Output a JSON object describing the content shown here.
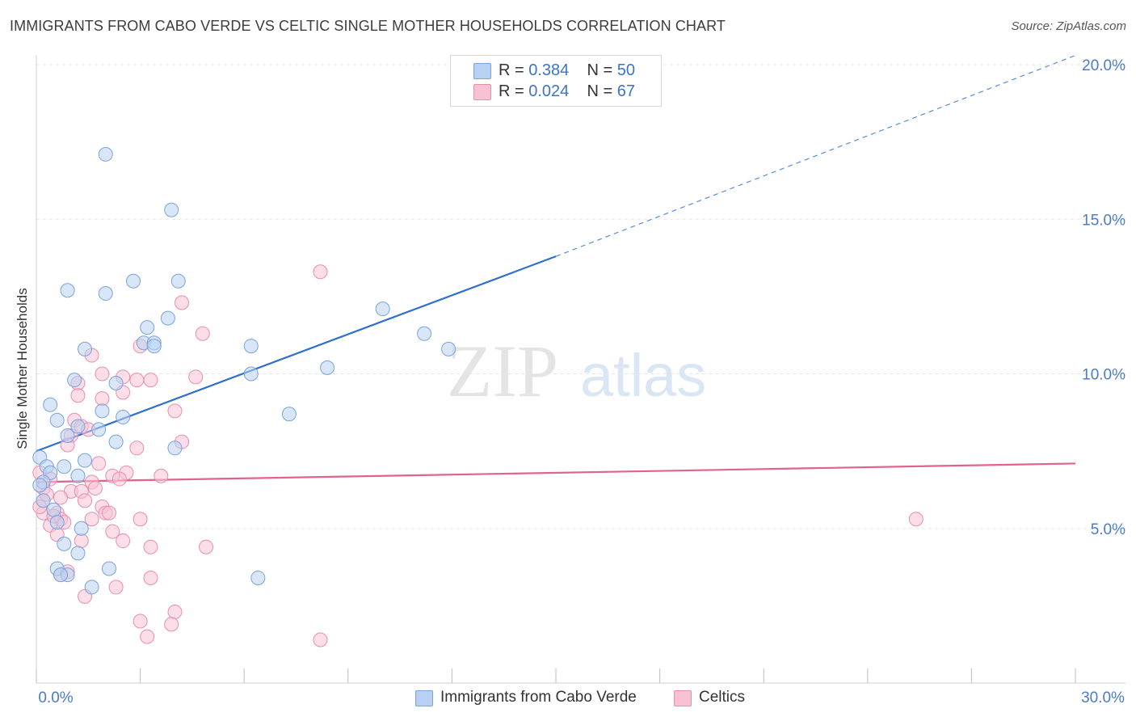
{
  "title": "IMMIGRANTS FROM CABO VERDE VS CELTIC SINGLE MOTHER HOUSEHOLDS CORRELATION CHART",
  "source": "Source: ZipAtlas.com",
  "watermark": {
    "zip": "ZIP",
    "atlas": "atlas"
  },
  "legend": {
    "series": [
      {
        "r_label": "R =",
        "r_value": "0.384",
        "n_label": "N =",
        "n_value": "50"
      },
      {
        "r_label": "R =",
        "r_value": "0.024",
        "n_label": "N =",
        "n_value": "67"
      }
    ]
  },
  "colors": {
    "blue_fill": "#b8d1f3",
    "blue_stroke": "#7aa3db",
    "blue_line": "#2e6fd0",
    "pink_fill": "#f7c3d4",
    "pink_stroke": "#e98db0",
    "pink_line": "#e0628f",
    "tick_label": "#4a7cc9",
    "grid": "#e6e6e6"
  },
  "chart_data": {
    "type": "scatter",
    "title": "IMMIGRANTS FROM CABO VERDE VS CELTIC SINGLE MOTHER HOUSEHOLDS CORRELATION CHART",
    "xlabel": "",
    "ylabel": "Single Mother Households",
    "xlim": [
      0,
      30
    ],
    "ylim": [
      0,
      20
    ],
    "x_tick_labels": [
      "0.0%",
      "30.0%"
    ],
    "y_ticks": [
      5,
      10,
      15,
      20
    ],
    "y_tick_labels": [
      "5.0%",
      "10.0%",
      "15.0%",
      "20.0%"
    ],
    "grid": true,
    "legend_position": "top-center",
    "series": [
      {
        "name": "Immigrants from Cabo Verde",
        "r": 0.384,
        "n": 50,
        "trend": {
          "x0": 0,
          "y0": 7.5,
          "x1": 15,
          "y1": 13.8,
          "dashed_to_x": 30,
          "dashed_to_y": 20.3
        },
        "points": [
          [
            2.0,
            17.1
          ],
          [
            3.9,
            15.3
          ],
          [
            0.9,
            12.7
          ],
          [
            2.0,
            12.6
          ],
          [
            2.8,
            13.0
          ],
          [
            4.1,
            13.0
          ],
          [
            3.8,
            11.8
          ],
          [
            3.2,
            11.5
          ],
          [
            3.1,
            11.0
          ],
          [
            3.4,
            11.0
          ],
          [
            3.4,
            10.9
          ],
          [
            1.4,
            10.8
          ],
          [
            6.2,
            10.9
          ],
          [
            10.0,
            12.1
          ],
          [
            11.2,
            11.3
          ],
          [
            11.9,
            10.8
          ],
          [
            8.4,
            10.2
          ],
          [
            6.2,
            10.0
          ],
          [
            1.1,
            9.8
          ],
          [
            2.3,
            9.7
          ],
          [
            0.4,
            9.0
          ],
          [
            1.9,
            8.8
          ],
          [
            0.6,
            8.5
          ],
          [
            2.5,
            8.6
          ],
          [
            7.3,
            8.7
          ],
          [
            1.2,
            8.3
          ],
          [
            1.8,
            8.2
          ],
          [
            0.9,
            8.0
          ],
          [
            2.3,
            7.8
          ],
          [
            4.0,
            7.6
          ],
          [
            0.1,
            7.3
          ],
          [
            1.4,
            7.2
          ],
          [
            0.3,
            7.0
          ],
          [
            0.8,
            7.0
          ],
          [
            0.4,
            6.8
          ],
          [
            1.2,
            6.7
          ],
          [
            0.2,
            6.5
          ],
          [
            0.1,
            6.4
          ],
          [
            0.2,
            5.9
          ],
          [
            0.5,
            5.6
          ],
          [
            0.6,
            5.2
          ],
          [
            1.3,
            5.0
          ],
          [
            0.8,
            4.5
          ],
          [
            1.2,
            4.2
          ],
          [
            0.6,
            3.7
          ],
          [
            2.1,
            3.7
          ],
          [
            0.9,
            3.5
          ],
          [
            6.4,
            3.4
          ],
          [
            1.6,
            3.1
          ],
          [
            0.7,
            3.5
          ]
        ]
      },
      {
        "name": "Celtics",
        "r": 0.024,
        "n": 67,
        "trend": {
          "x0": 0,
          "y0": 6.5,
          "x1": 30,
          "y1": 7.1
        },
        "points": [
          [
            8.2,
            13.3
          ],
          [
            4.2,
            12.3
          ],
          [
            4.8,
            11.3
          ],
          [
            3.0,
            10.9
          ],
          [
            1.6,
            10.6
          ],
          [
            1.9,
            10.0
          ],
          [
            4.6,
            9.9
          ],
          [
            2.5,
            9.9
          ],
          [
            2.9,
            9.8
          ],
          [
            3.3,
            9.8
          ],
          [
            1.2,
            9.7
          ],
          [
            2.5,
            9.4
          ],
          [
            1.2,
            9.3
          ],
          [
            1.9,
            9.2
          ],
          [
            4.0,
            8.8
          ],
          [
            1.1,
            8.5
          ],
          [
            1.3,
            8.3
          ],
          [
            1.5,
            8.2
          ],
          [
            1.0,
            8.0
          ],
          [
            4.2,
            7.8
          ],
          [
            0.9,
            7.7
          ],
          [
            2.9,
            7.6
          ],
          [
            1.8,
            7.1
          ],
          [
            2.6,
            6.8
          ],
          [
            2.2,
            6.7
          ],
          [
            3.6,
            6.7
          ],
          [
            2.4,
            6.6
          ],
          [
            1.6,
            6.5
          ],
          [
            0.4,
            6.6
          ],
          [
            0.2,
            6.3
          ],
          [
            1.0,
            6.2
          ],
          [
            1.3,
            6.2
          ],
          [
            0.7,
            6.0
          ],
          [
            0.2,
            5.9
          ],
          [
            1.4,
            5.9
          ],
          [
            1.9,
            5.7
          ],
          [
            0.2,
            5.5
          ],
          [
            2.0,
            5.5
          ],
          [
            0.6,
            5.5
          ],
          [
            0.7,
            5.3
          ],
          [
            0.8,
            5.2
          ],
          [
            0.4,
            5.1
          ],
          [
            3.0,
            5.3
          ],
          [
            1.6,
            5.3
          ],
          [
            2.2,
            4.9
          ],
          [
            0.6,
            4.8
          ],
          [
            1.3,
            4.6
          ],
          [
            2.5,
            4.6
          ],
          [
            3.3,
            4.4
          ],
          [
            4.9,
            4.4
          ],
          [
            25.4,
            5.3
          ],
          [
            0.9,
            3.6
          ],
          [
            0.7,
            3.5
          ],
          [
            3.3,
            3.4
          ],
          [
            2.3,
            3.1
          ],
          [
            1.4,
            2.8
          ],
          [
            4.0,
            2.3
          ],
          [
            3.0,
            2.0
          ],
          [
            3.9,
            1.9
          ],
          [
            3.2,
            1.5
          ],
          [
            8.2,
            1.4
          ],
          [
            0.1,
            5.7
          ],
          [
            0.3,
            6.1
          ],
          [
            0.5,
            5.4
          ],
          [
            0.1,
            6.8
          ],
          [
            2.1,
            5.5
          ],
          [
            1.7,
            6.3
          ]
        ]
      }
    ]
  }
}
